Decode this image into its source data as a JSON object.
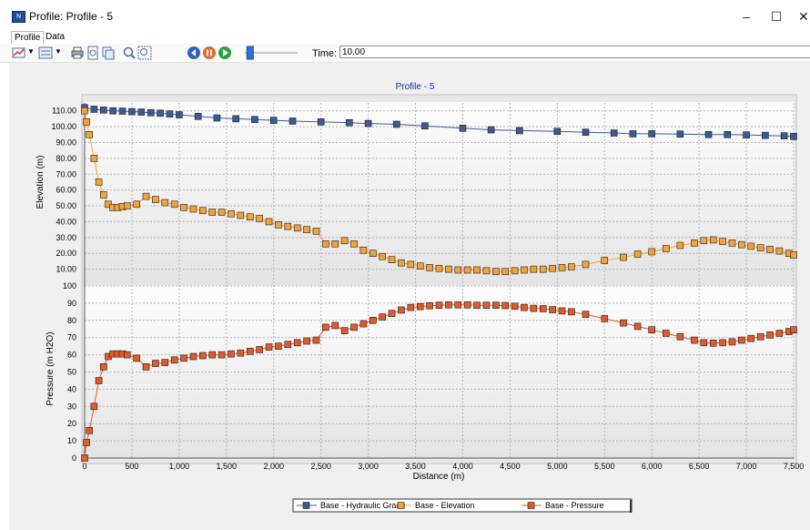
{
  "window": {
    "title": "Profile: Profile - 5",
    "app_icon": "flextable-app-icon",
    "min_glyph": "–",
    "max_glyph": "☐",
    "close_glyph": "✕"
  },
  "tabs": [
    "Profile",
    "Data"
  ],
  "toolbar": {
    "time_label": "Time:",
    "time_value": "10.00",
    "slider_level": 0.1
  },
  "chart_data": {
    "type": "line",
    "title": "Profile - 5",
    "xlabel": "Distance (m)",
    "xlim": [
      0,
      7500
    ],
    "xticks": [
      "0",
      "500",
      "1,000",
      "1,500",
      "2,000",
      "2,500",
      "3,000",
      "3,500",
      "4,000",
      "4,500",
      "5,000",
      "5,500",
      "6,000",
      "6,500",
      "7,000",
      "7,500"
    ],
    "upper": {
      "ylabel": "Elevation (m)",
      "ylim": [
        0,
        115
      ],
      "yticks": [
        "10.00",
        "20.00",
        "30.00",
        "40.00",
        "50.00",
        "60.00",
        "70.00",
        "80.00",
        "90.00",
        "100.00",
        "110.00"
      ],
      "series": [
        {
          "name": "Base - Hydraulic Grade",
          "color": "#3c5a96",
          "x": [
            0,
            100,
            200,
            300,
            400,
            500,
            600,
            700,
            800,
            900,
            1000,
            1200,
            1400,
            1600,
            1800,
            2000,
            2200,
            2500,
            2800,
            3000,
            3300,
            3600,
            4000,
            4300,
            4600,
            5000,
            5300,
            5600,
            5800,
            6000,
            6300,
            6600,
            6800,
            7000,
            7200,
            7400,
            7500
          ],
          "y": [
            112,
            111,
            110.5,
            110,
            109.8,
            109.5,
            109.2,
            108.8,
            108.5,
            108,
            107.5,
            106.5,
            105.5,
            105,
            104.5,
            104,
            103.5,
            103,
            102.5,
            102,
            101.5,
            100.5,
            99,
            98,
            97.5,
            97,
            96.5,
            96,
            95.5,
            95.5,
            95.3,
            95,
            95,
            94.8,
            94.5,
            94.2,
            93.8
          ]
        },
        {
          "name": "Base - Elevation",
          "color": "#f2a23a",
          "x": [
            0,
            20,
            50,
            100,
            150,
            200,
            250,
            300,
            350,
            400,
            450,
            550,
            650,
            750,
            850,
            950,
            1050,
            1150,
            1250,
            1350,
            1450,
            1550,
            1650,
            1750,
            1850,
            1950,
            2050,
            2150,
            2250,
            2350,
            2450,
            2550,
            2650,
            2750,
            2850,
            2950,
            3050,
            3150,
            3250,
            3350,
            3450,
            3550,
            3650,
            3750,
            3850,
            3950,
            4050,
            4150,
            4250,
            4350,
            4450,
            4550,
            4650,
            4750,
            4850,
            4950,
            5050,
            5150,
            5300,
            5500,
            5700,
            5850,
            6000,
            6150,
            6300,
            6450,
            6550,
            6650,
            6750,
            6850,
            6950,
            7050,
            7150,
            7250,
            7350,
            7450,
            7500
          ],
          "y": [
            110,
            103,
            95,
            80,
            65,
            57,
            51,
            49,
            49,
            49.5,
            50,
            51,
            56,
            54,
            52,
            51,
            49,
            48,
            47,
            46,
            46,
            45,
            44,
            43,
            42,
            40,
            38,
            37,
            36,
            35,
            34,
            26,
            26,
            28,
            26,
            22,
            20,
            18,
            16,
            14,
            13,
            12,
            11,
            10.5,
            10,
            9.5,
            9.5,
            9.5,
            9,
            8.5,
            8.5,
            9,
            9.5,
            10,
            10,
            10.5,
            11,
            11.5,
            13,
            15.5,
            17.5,
            19.5,
            21,
            23,
            25,
            26.5,
            28,
            28.5,
            27.5,
            26.5,
            25.5,
            24.5,
            23.5,
            22.5,
            21.5,
            20,
            19
          ]
        }
      ]
    },
    "lower": {
      "ylabel": "Pressure (m H2O)",
      "ylim": [
        0,
        100
      ],
      "yticks": [
        "0",
        "10",
        "20",
        "30",
        "40",
        "50",
        "60",
        "70",
        "80",
        "90",
        "100"
      ],
      "series": [
        {
          "name": "Base - Pressure",
          "color": "#e05a2a",
          "x": [
            0,
            20,
            50,
            100,
            150,
            200,
            250,
            300,
            350,
            400,
            450,
            550,
            650,
            750,
            850,
            950,
            1050,
            1150,
            1250,
            1350,
            1450,
            1550,
            1650,
            1750,
            1850,
            1950,
            2050,
            2150,
            2250,
            2350,
            2450,
            2550,
            2650,
            2750,
            2850,
            2950,
            3050,
            3150,
            3250,
            3350,
            3450,
            3550,
            3650,
            3750,
            3850,
            3950,
            4050,
            4150,
            4250,
            4350,
            4450,
            4550,
            4650,
            4750,
            4850,
            4950,
            5050,
            5150,
            5300,
            5500,
            5700,
            5850,
            6000,
            6150,
            6300,
            6450,
            6550,
            6650,
            6750,
            6850,
            6950,
            7050,
            7150,
            7250,
            7350,
            7450,
            7500
          ],
          "y": [
            0,
            9,
            16,
            30,
            45,
            53,
            59,
            60.5,
            60.5,
            60.5,
            60,
            58,
            53,
            55,
            55.5,
            57,
            58,
            59,
            59.5,
            60,
            60,
            60.5,
            61,
            62,
            63,
            64.5,
            65,
            66,
            67,
            68,
            68.5,
            76,
            77,
            74,
            76,
            78,
            80,
            82,
            84,
            86,
            87.5,
            88,
            88.5,
            88.8,
            89,
            89,
            89,
            88.8,
            88.8,
            88.8,
            88.6,
            88.2,
            87.5,
            87,
            86.8,
            86.2,
            85.5,
            85,
            83.5,
            81,
            78.5,
            76.5,
            74.5,
            72.5,
            70.5,
            68.5,
            67,
            66.8,
            67,
            67.5,
            68.5,
            69.5,
            70.5,
            71.5,
            72.5,
            73.5,
            74.5
          ]
        }
      ]
    },
    "legend": {
      "position": "bottom",
      "entries": [
        "Base - Hydraulic Grade",
        "Base - Elevation",
        "Base - Pressure"
      ]
    }
  }
}
